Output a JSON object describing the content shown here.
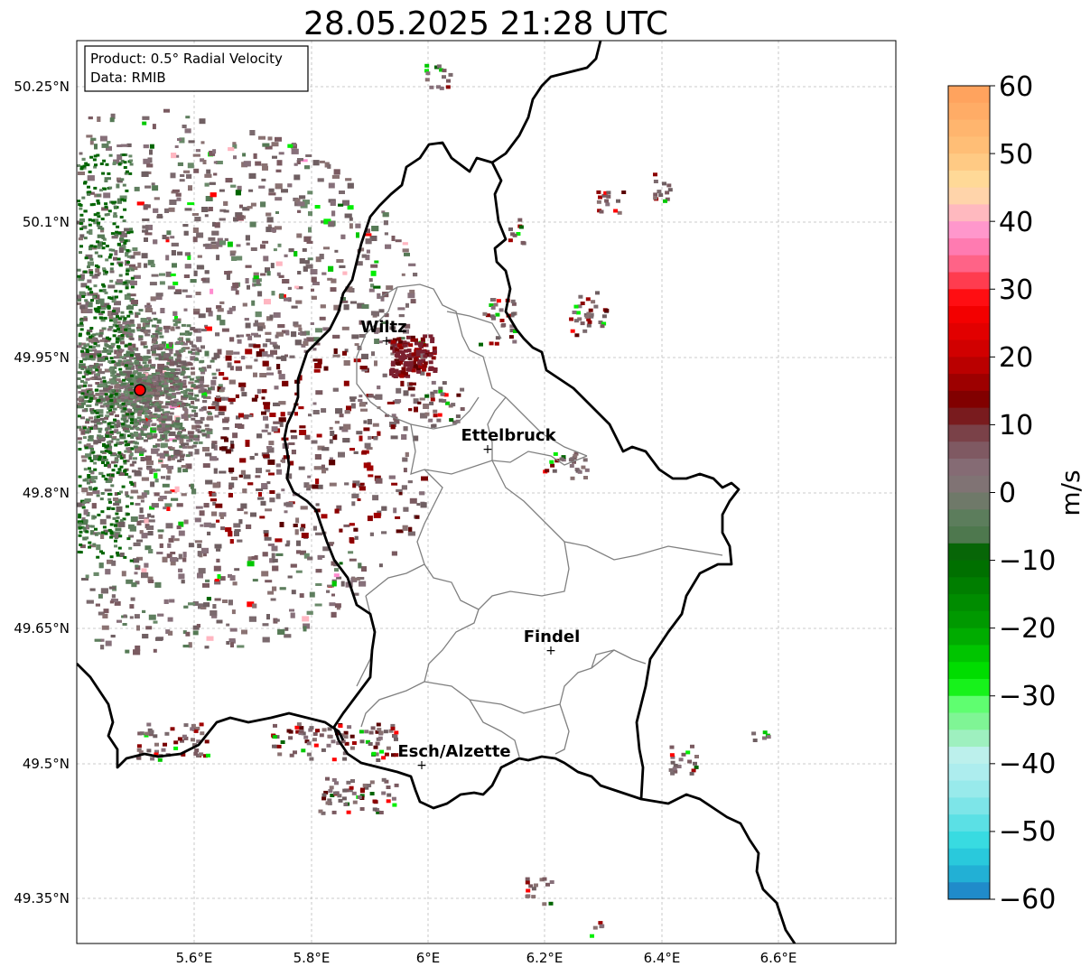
{
  "title": "28.05.2025 21:28 UTC",
  "info_box": {
    "product": "Product: 0.5° Radial Velocity",
    "data": "Data: RMIB"
  },
  "lat_labels": [
    "50.25°N",
    "50.1°N",
    "49.95°N",
    "49.8°N",
    "49.65°N",
    "49.5°N",
    "49.35°N"
  ],
  "lon_labels": [
    "5.6°E",
    "5.8°E",
    "6°E",
    "6.2°E",
    "6.4°E",
    "6.6°E"
  ],
  "cities": [
    {
      "name": "Wiltz"
    },
    {
      "name": "Ettelbruck"
    },
    {
      "name": "Findel"
    },
    {
      "name": "Esch/Alzette"
    }
  ],
  "colorbar": {
    "label": "m/s",
    "min": -60,
    "max": 60,
    "ticks": [
      "60",
      "50",
      "40",
      "30",
      "20",
      "10",
      "0",
      "−10",
      "−20",
      "−30",
      "−40",
      "−50",
      "−60"
    ],
    "stops": [
      {
        "v": 60,
        "color": "#ff9f5a"
      },
      {
        "v": 50,
        "color": "#ffc27a"
      },
      {
        "v": 45,
        "color": "#ffe1a0"
      },
      {
        "v": 41,
        "color": "#ffb6c1"
      },
      {
        "v": 38,
        "color": "#ff8ccf"
      },
      {
        "v": 33,
        "color": "#ff5c7a"
      },
      {
        "v": 28,
        "color": "#ff0000"
      },
      {
        "v": 20,
        "color": "#c80000"
      },
      {
        "v": 13,
        "color": "#780000"
      },
      {
        "v": 8,
        "color": "#7a4d55"
      },
      {
        "v": 3,
        "color": "#87707a"
      },
      {
        "v": 0,
        "color": "#7b7570"
      },
      {
        "v": -3,
        "color": "#5e7e5e"
      },
      {
        "v": -6,
        "color": "#557a55"
      },
      {
        "v": -9,
        "color": "#006400"
      },
      {
        "v": -20,
        "color": "#00a000"
      },
      {
        "v": -28,
        "color": "#00ee00"
      },
      {
        "v": -31,
        "color": "#5cff6c"
      },
      {
        "v": -35,
        "color": "#8ff0a8"
      },
      {
        "v": -39,
        "color": "#bff0f0"
      },
      {
        "v": -45,
        "color": "#8ee8ea"
      },
      {
        "v": -52,
        "color": "#2ed9e0"
      },
      {
        "v": -56,
        "color": "#22b4d6"
      },
      {
        "v": -60,
        "color": "#1f78c4"
      }
    ]
  },
  "radar_site": {
    "name": "radar-site",
    "color": "#ff0000"
  },
  "colors": {
    "border": "#000000",
    "canton_lines": "#808080",
    "grid": "#bbbbbb"
  }
}
